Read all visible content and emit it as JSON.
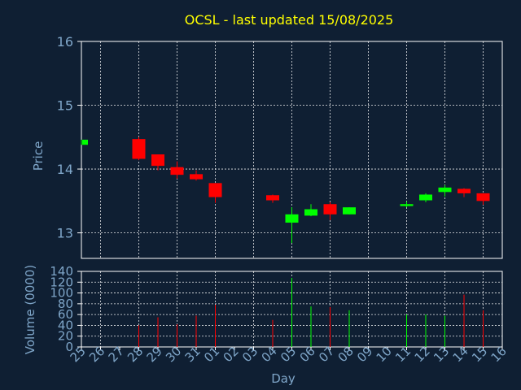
{
  "chart_data": {
    "type": "candlestick",
    "title": "OCSL - last updated 15/08/2025",
    "xlabel": "Day",
    "ylabel_price": "Price",
    "ylabel_volume": "Volume (0000)",
    "price_ticks": [
      13,
      14,
      15,
      16
    ],
    "price_range": [
      12.6,
      16.0
    ],
    "volume_ticks": [
      0,
      20,
      40,
      60,
      80,
      100,
      120,
      140
    ],
    "volume_range": [
      0,
      140
    ],
    "days": [
      "25",
      "26",
      "27",
      "28",
      "29",
      "30",
      "31",
      "01",
      "02",
      "03",
      "04",
      "05",
      "06",
      "07",
      "08",
      "09",
      "10",
      "11",
      "12",
      "13",
      "14",
      "15",
      "16"
    ],
    "grid": true,
    "colors": {
      "background": "#0f1f33",
      "plot_border": "#ffffff",
      "grid": "#ffffff",
      "title": "#ffff00",
      "axis_text": "#7fa6c9",
      "up": "#00ff00",
      "down": "#ff0000"
    },
    "candles": [
      {
        "day": "25",
        "open": 14.38,
        "close": 14.46,
        "high": 14.46,
        "low": 14.38,
        "volume": 0
      },
      {
        "day": "28",
        "open": 14.47,
        "close": 14.16,
        "high": 14.5,
        "low": 14.14,
        "volume": 40
      },
      {
        "day": "29",
        "open": 14.23,
        "close": 14.05,
        "high": 14.23,
        "low": 13.98,
        "volume": 55
      },
      {
        "day": "30",
        "open": 14.03,
        "close": 13.91,
        "high": 14.12,
        "low": 13.85,
        "volume": 42
      },
      {
        "day": "31",
        "open": 13.92,
        "close": 13.84,
        "high": 13.98,
        "low": 13.82,
        "volume": 58
      },
      {
        "day": "01",
        "open": 13.78,
        "close": 13.56,
        "high": 13.78,
        "low": 13.47,
        "volume": 78
      },
      {
        "day": "04",
        "open": 13.59,
        "close": 13.51,
        "high": 13.6,
        "low": 13.47,
        "volume": 50
      },
      {
        "day": "05",
        "open": 13.16,
        "close": 13.29,
        "high": 13.4,
        "low": 12.84,
        "volume": 128
      },
      {
        "day": "06",
        "open": 13.27,
        "close": 13.37,
        "high": 13.45,
        "low": 13.26,
        "volume": 75
      },
      {
        "day": "07",
        "open": 13.45,
        "close": 13.29,
        "high": 13.48,
        "low": 13.2,
        "volume": 74
      },
      {
        "day": "08",
        "open": 13.29,
        "close": 13.4,
        "high": 13.4,
        "low": 13.29,
        "volume": 68
      },
      {
        "day": "11",
        "open": 13.42,
        "close": 13.45,
        "high": 13.49,
        "low": 13.4,
        "volume": 60
      },
      {
        "day": "12",
        "open": 13.51,
        "close": 13.6,
        "high": 13.62,
        "low": 13.48,
        "volume": 60
      },
      {
        "day": "13",
        "open": 13.64,
        "close": 13.71,
        "high": 13.75,
        "low": 13.57,
        "volume": 58
      },
      {
        "day": "14",
        "open": 13.69,
        "close": 13.62,
        "high": 13.7,
        "low": 13.56,
        "volume": 97
      },
      {
        "day": "15",
        "open": 13.62,
        "close": 13.5,
        "high": 13.62,
        "low": 13.44,
        "volume": 68
      }
    ]
  }
}
